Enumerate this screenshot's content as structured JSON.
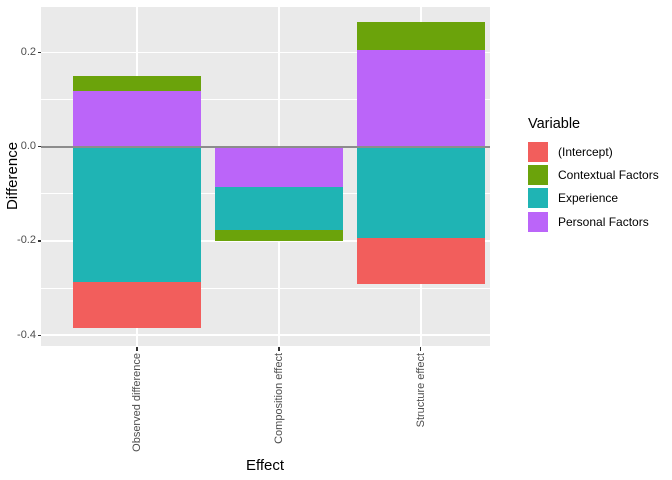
{
  "chart_data": {
    "type": "bar",
    "stacked": true,
    "title": "",
    "xlabel": "Effect",
    "ylabel": "Difference",
    "legend_title": "Variable",
    "legend_position": "right",
    "grid": true,
    "categories": [
      "Observed difference",
      "Composition effect",
      "Structure effect"
    ],
    "series": [
      {
        "name": "(Intercept)",
        "color": "#F25E5C",
        "values": [
          -0.097,
          0.0,
          -0.098
        ]
      },
      {
        "name": "Contextual Factors",
        "color": "#6BA30B",
        "values": [
          0.032,
          -0.024,
          0.06
        ]
      },
      {
        "name": "Experience",
        "color": "#1FB4B4",
        "values": [
          -0.288,
          -0.091,
          -0.193
        ]
      },
      {
        "name": "Personal Factors",
        "color": "#BB65F9",
        "values": [
          0.119,
          -0.086,
          0.205
        ]
      }
    ],
    "stacking": "segments stack outward from zero; draw order is reverse of legend order",
    "y_ticks": [
      {
        "value": 0.2,
        "label": "0.2"
      },
      {
        "value": 0.0,
        "label": "0.0"
      },
      {
        "value": -0.2,
        "label": "-0.2"
      },
      {
        "value": -0.4,
        "label": "-0.4"
      }
    ],
    "y_minor_ticks": [
      0.1,
      -0.1,
      -0.3
    ],
    "ylim": [
      -0.423,
      0.2965
    ],
    "zero_line": 0,
    "colors": {
      "figure_bg": "#FFFFFF",
      "panel_bg": "#EAEAEA",
      "gridline": "#FFFFFF",
      "zero_line": "#8C8C8C",
      "axis_tick_text": "#4D4D4D",
      "axis_title_text": "#000000",
      "tick_mark": "#333333"
    }
  }
}
